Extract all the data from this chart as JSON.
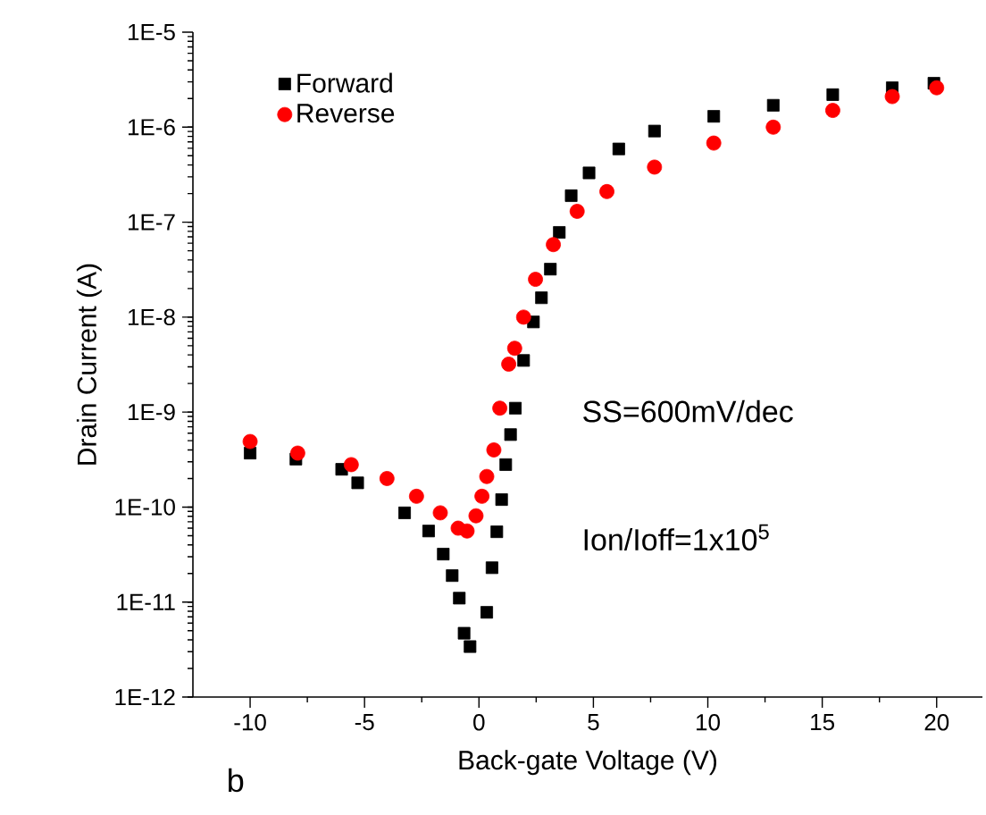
{
  "chart_data": {
    "type": "scatter",
    "xlabel": "Back-gate Voltage (V)",
    "ylabel": "Drain Current (A)",
    "log": "y",
    "legend": "top left",
    "grid": false,
    "xlim": [
      -12.5,
      22
    ],
    "ylim": [
      1e-12,
      1e-05
    ],
    "xticks": [
      -10,
      -5,
      0,
      5,
      10,
      15,
      20
    ],
    "yticks": [
      {
        "value": 1e-12,
        "label": "1E-12"
      },
      {
        "value": 1e-11,
        "label": "1E-11"
      },
      {
        "value": 1e-10,
        "label": "1E-10"
      },
      {
        "value": 1e-09,
        "label": "1E-9"
      },
      {
        "value": 1e-08,
        "label": "1E-8"
      },
      {
        "value": 1e-07,
        "label": "1E-7"
      },
      {
        "value": 1e-06,
        "label": "1E-6"
      },
      {
        "value": 1e-05,
        "label": "1E-5"
      }
    ],
    "annotations": [
      "SS=600mV/dec",
      "Ion/Ioff=1x10$^{5}$",
      "b"
    ],
    "series": [
      {
        "name": "Forward",
        "color": "#000000",
        "marker": "square",
        "x": [
          -10,
          -8,
          -6,
          -5.3,
          -3.25,
          -2.2,
          -1.56,
          -1.17,
          -0.86,
          -0.65,
          -0.39,
          0.34,
          0.57,
          0.78,
          0.99,
          1.17,
          1.38,
          1.59,
          1.95,
          2.38,
          2.73,
          3.12,
          3.51,
          4.03,
          4.81,
          6.11,
          7.67,
          10.26,
          12.86,
          15.46,
          18.06,
          19.88
        ],
        "values": [
          3.7e-10,
          3.2e-10,
          2.5e-10,
          1.8e-10,
          8.7e-11,
          5.6e-11,
          3.2e-11,
          1.9e-11,
          1.1e-11,
          4.7e-12,
          3.4e-12,
          7.8e-12,
          2.3e-11,
          5.5e-11,
          1.2e-10,
          2.8e-10,
          5.8e-10,
          1.1e-09,
          3.5e-09,
          8.9e-09,
          1.6e-08,
          3.2e-08,
          7.8e-08,
          1.9e-07,
          3.3e-07,
          5.9e-07,
          9.1e-07,
          1.3e-06,
          1.7e-06,
          2.2e-06,
          2.6e-06,
          2.9e-06
        ]
      },
      {
        "name": "Reverse",
        "color": "#ff0000",
        "marker": "circle",
        "x": [
          -10,
          -7.92,
          -5.58,
          -4.02,
          -2.73,
          -1.69,
          -0.91,
          -0.52,
          -0.13,
          0.13,
          0.34,
          0.65,
          0.91,
          1.3,
          1.56,
          1.95,
          2.47,
          3.25,
          4.29,
          5.59,
          7.67,
          10.26,
          12.86,
          15.46,
          18.06,
          20
        ],
        "values": [
          4.9e-10,
          3.7e-10,
          2.8e-10,
          2e-10,
          1.3e-10,
          8.7e-11,
          6e-11,
          5.6e-11,
          8.1e-11,
          1.3e-10,
          2.1e-10,
          4e-10,
          1.1e-09,
          3.2e-09,
          4.7e-09,
          1e-08,
          2.5e-08,
          5.8e-08,
          1.3e-07,
          2.1e-07,
          3.8e-07,
          6.8e-07,
          1e-06,
          1.5e-06,
          2.1e-06,
          2.6e-06
        ]
      }
    ]
  }
}
